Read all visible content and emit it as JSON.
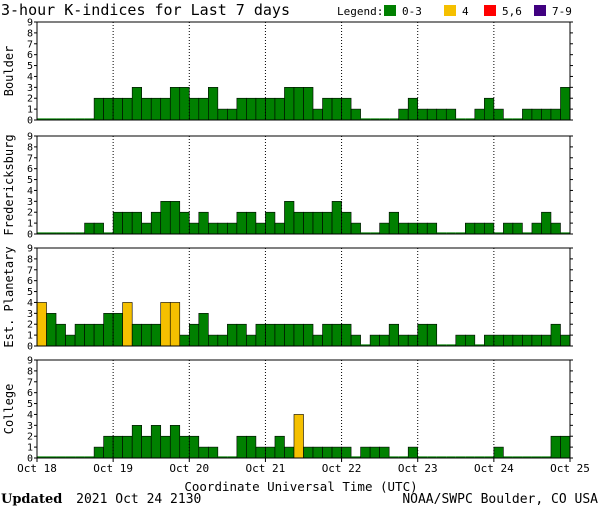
{
  "chart_data": {
    "type": "bar",
    "title": "3-hour K-indices for Last 7 days",
    "xlabel": "Coordinate Universal Time (UTC)",
    "ylim": [
      0,
      9
    ],
    "yticks": [
      "0",
      "1",
      "2",
      "3",
      "4",
      "5",
      "6",
      "7",
      "8",
      "9"
    ],
    "x_tick_labels": [
      "Oct 18",
      "Oct 19",
      "Oct 20",
      "Oct 21",
      "Oct 22",
      "Oct 23",
      "Oct 24",
      "Oct 25"
    ],
    "intervals_per_day": 8,
    "legend": {
      "title": "Legend:",
      "entries": [
        {
          "label": "0-3",
          "color": "#008000",
          "min": 0,
          "max": 3
        },
        {
          "label": "4",
          "color": "#f5c000",
          "min": 4,
          "max": 4
        },
        {
          "label": "5,6",
          "color": "#ff0000",
          "min": 5,
          "max": 6
        },
        {
          "label": "7-9",
          "color": "#400080",
          "min": 7,
          "max": 9
        }
      ]
    },
    "panels": [
      {
        "name": "Boulder",
        "values": [
          0,
          0,
          0,
          0,
          0,
          0,
          2,
          2,
          2,
          2,
          3,
          2,
          2,
          2,
          3,
          3,
          2,
          2,
          3,
          1,
          1,
          2,
          2,
          2,
          2,
          2,
          3,
          3,
          3,
          1,
          2,
          2,
          2,
          1,
          0,
          0,
          0,
          0,
          1,
          2,
          1,
          1,
          1,
          1,
          0,
          0,
          1,
          2,
          1,
          0,
          0,
          1,
          1,
          1,
          1,
          3,
          2,
          0
        ]
      },
      {
        "name": "Fredericksburg",
        "values": [
          0,
          0,
          0,
          0,
          0,
          1,
          1,
          0,
          2,
          2,
          2,
          1,
          2,
          3,
          3,
          2,
          1,
          2,
          1,
          1,
          1,
          2,
          2,
          1,
          2,
          1,
          3,
          2,
          2,
          2,
          2,
          3,
          2,
          1,
          0,
          0,
          1,
          2,
          1,
          1,
          1,
          1,
          0,
          0,
          0,
          1,
          1,
          1,
          0,
          1,
          1,
          0,
          1,
          2,
          1,
          0
        ]
      },
      {
        "name": "Est. Planetary",
        "values": [
          4,
          3,
          2,
          1,
          2,
          2,
          2,
          3,
          3,
          4,
          2,
          2,
          2,
          4,
          4,
          1,
          2,
          3,
          1,
          1,
          2,
          2,
          1,
          2,
          2,
          2,
          2,
          2,
          2,
          1,
          2,
          2,
          2,
          1,
          0,
          1,
          1,
          2,
          1,
          1,
          2,
          2,
          0,
          0,
          1,
          1,
          0,
          1,
          1,
          1,
          1,
          1,
          1,
          1,
          2,
          1
        ]
      },
      {
        "name": "College",
        "values": [
          0,
          0,
          0,
          0,
          0,
          0,
          1,
          2,
          2,
          2,
          3,
          2,
          3,
          2,
          3,
          2,
          2,
          1,
          1,
          0,
          0,
          2,
          2,
          1,
          1,
          2,
          1,
          4,
          1,
          1,
          1,
          1,
          1,
          0,
          1,
          1,
          1,
          0,
          0,
          1,
          0,
          0,
          0,
          0,
          0,
          0,
          0,
          0,
          1,
          0,
          0,
          0,
          0,
          0,
          2,
          2,
          1,
          1,
          0
        ]
      }
    ]
  },
  "footer": {
    "updated_label": "Updated",
    "updated_value": "2021 Oct 24 2130",
    "source": "NOAA/SWPC Boulder, CO USA"
  }
}
